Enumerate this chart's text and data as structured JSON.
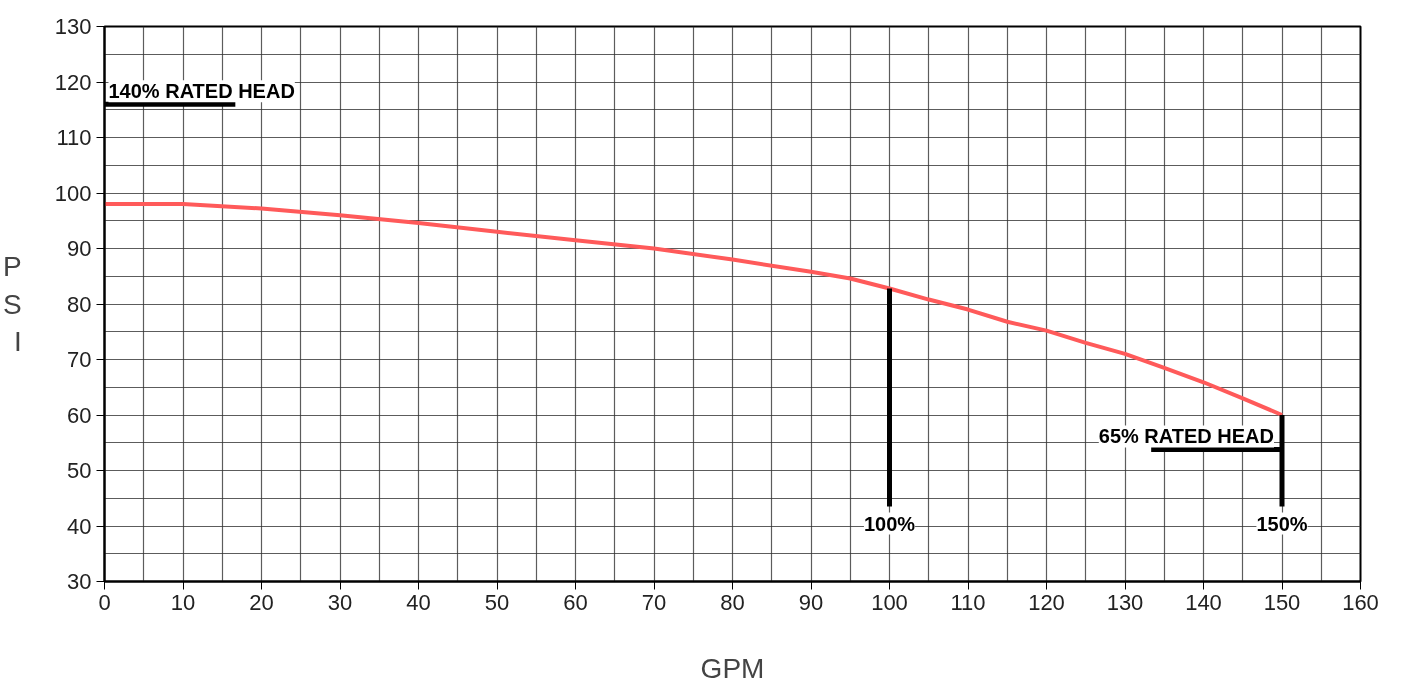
{
  "chart_data": {
    "type": "line",
    "xlabel": "GPM",
    "ylabel": "PSI",
    "x": [
      0,
      10,
      20,
      30,
      40,
      50,
      60,
      70,
      80,
      90,
      95,
      100,
      105,
      110,
      115,
      120,
      125,
      130,
      135,
      140,
      145,
      150
    ],
    "series": [
      {
        "color": "#ff5a5a",
        "values": [
          98,
          98,
          97.2,
          96,
          94.6,
          93,
          91.5,
          90,
          88,
          85.8,
          84.6,
          82.8,
          80.8,
          79,
          76.8,
          75.2,
          73,
          71,
          68.5,
          65.9,
          63,
          60
        ]
      }
    ],
    "xlim": [
      0,
      160
    ],
    "xticks": [
      0,
      10,
      20,
      30,
      40,
      50,
      60,
      70,
      80,
      90,
      100,
      110,
      120,
      130,
      140,
      150,
      160
    ],
    "ylim": [
      30,
      130
    ],
    "yticks": [
      30,
      40,
      50,
      60,
      70,
      80,
      90,
      100,
      110,
      120,
      130
    ],
    "grid": true,
    "marker": "none",
    "line_style": "solid",
    "ref_lines": [
      {
        "axis": "y",
        "value": 116,
        "label": "140% RATED HEAD",
        "color": "#000000"
      },
      {
        "axis": "x",
        "value": 100,
        "label": "100%",
        "color": "#000000"
      },
      {
        "axis": "y",
        "value": 53.8,
        "label": "65% RATED HEAD",
        "color": "#000000"
      },
      {
        "axis": "x",
        "value": 150,
        "label": "150%",
        "color": "#000000"
      }
    ]
  }
}
